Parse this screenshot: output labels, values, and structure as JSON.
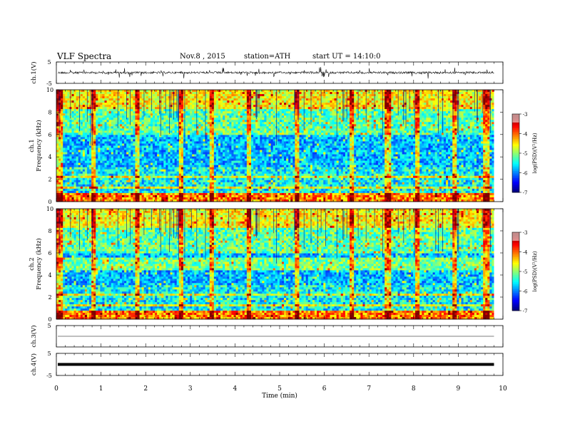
{
  "header": {
    "title": "VLF Spectra",
    "date": "Nov.8 , 2015",
    "station": "station=ATH",
    "start": "start UT = 14:10:0"
  },
  "chart_data": [
    {
      "type": "line",
      "panel": "ch1-waveform",
      "ylabel": "ch.1(V)",
      "ylim": [
        -5,
        5
      ],
      "yticks": [
        "5",
        "-5"
      ],
      "description_values": {
        "baseline": 0,
        "noise_amplitude": 1
      }
    },
    {
      "type": "heatmap",
      "panel": "ch1-spectrogram",
      "ylabel_channel": "ch.1",
      "ylabel": "Frequency (kHz)",
      "ylim": [
        0,
        10
      ],
      "yticks": [
        "0",
        "2",
        "4",
        "6",
        "8",
        "10"
      ],
      "colorbar": {
        "label": "log(PSD)(V²/Hz)",
        "range": [
          -7,
          -3
        ],
        "ticks": [
          "-3",
          "-4",
          "-5",
          "-6",
          "-7"
        ]
      },
      "vertical_bursts_min": [
        0.04,
        0.8,
        1.78,
        2.77,
        3.46,
        4.28,
        5.37,
        6.6,
        7.4,
        8.05,
        8.9,
        9.6
      ]
    },
    {
      "type": "heatmap",
      "panel": "ch2-spectrogram",
      "ylabel_channel": "ch.2",
      "ylabel": "Frequency (kHz)",
      "ylim": [
        0,
        10
      ],
      "yticks": [
        "0",
        "2",
        "4",
        "6",
        "8",
        "10"
      ],
      "colorbar": {
        "label": "log(PSD)(V²/Hz)",
        "range": [
          -7,
          -3
        ],
        "ticks": [
          "-3",
          "-4",
          "-5",
          "-6",
          "-7"
        ]
      },
      "vertical_bursts_min": [
        0.04,
        0.8,
        1.78,
        2.77,
        3.46,
        4.28,
        5.37,
        6.6,
        7.4,
        8.05,
        8.9,
        9.6
      ]
    },
    {
      "type": "line",
      "panel": "ch3-waveform",
      "ylabel": "ch.3(V)",
      "ylim": [
        -5,
        5
      ],
      "yticks": [
        "5"
      ],
      "description_values": {
        "baseline": 0
      }
    },
    {
      "type": "line",
      "panel": "ch4-waveform",
      "ylabel": "ch.4(V)",
      "ylim": [
        -5,
        5
      ],
      "yticks": [
        "5",
        "-5"
      ],
      "description_values": {
        "baseline": 0
      }
    }
  ],
  "xaxis": {
    "label": "Time (min)",
    "range": [
      0,
      10
    ],
    "ticks": [
      "0",
      "1",
      "2",
      "3",
      "4",
      "5",
      "6",
      "7",
      "8",
      "9",
      "10"
    ],
    "data_end": 9.8
  }
}
